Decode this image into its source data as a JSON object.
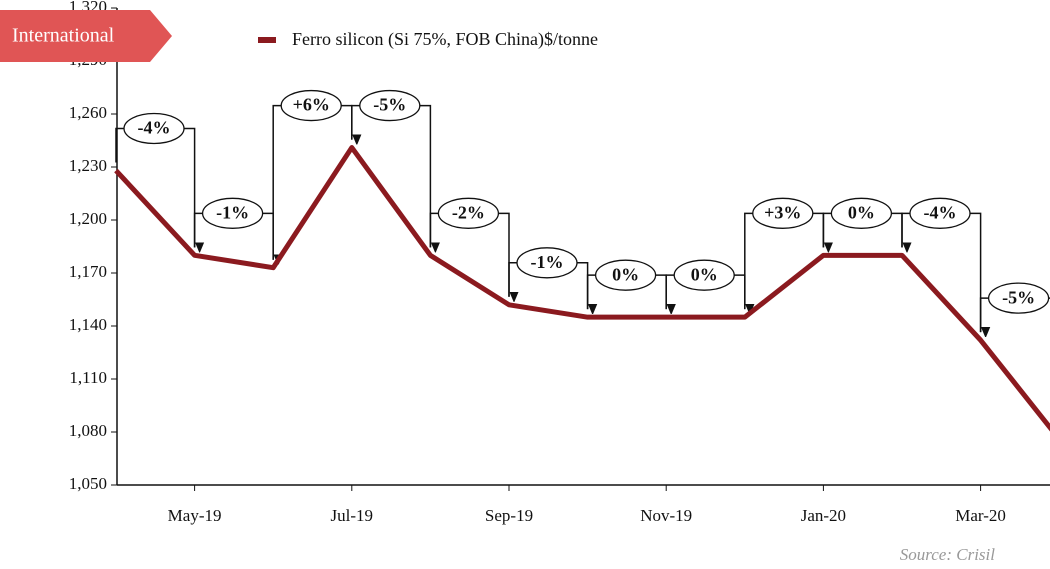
{
  "chart_data": {
    "type": "line",
    "badge": "International",
    "source": "Source: Crisil",
    "categories": [
      null,
      "May-19",
      null,
      "Jul-19",
      null,
      "Sep-19",
      null,
      "Nov-19",
      null,
      "Jan-20",
      null,
      "Mar-20",
      null
    ],
    "series": [
      {
        "name": "Ferro silicon (Si 75%, FOB China)$/tonne",
        "color": "#8b1a1f",
        "values": [
          1228,
          1180,
          1173,
          1241,
          1180,
          1152,
          1145,
          1145,
          1145,
          1180,
          1180,
          1132,
          1076
        ]
      }
    ],
    "annotations": [
      "-4%",
      "-1%",
      "+6%",
      "-5%",
      "-2%",
      "-1%",
      "0%",
      "0%",
      "+3%",
      "0%",
      "-4%",
      "-5%"
    ],
    "ylim": [
      1050,
      1320
    ],
    "yticks": [
      {
        "value": 1050,
        "label": "1,050"
      },
      {
        "value": 1080,
        "label": "1,080"
      },
      {
        "value": 1110,
        "label": "1,110"
      },
      {
        "value": 1140,
        "label": "1,140"
      },
      {
        "value": 1170,
        "label": "1,170"
      },
      {
        "value": 1200,
        "label": "1,200"
      },
      {
        "value": 1230,
        "label": "1,230"
      },
      {
        "value": 1260,
        "label": "1,260"
      },
      {
        "value": 1290,
        "label": "1,290"
      },
      {
        "value": 1320,
        "label": "1,320"
      }
    ]
  }
}
